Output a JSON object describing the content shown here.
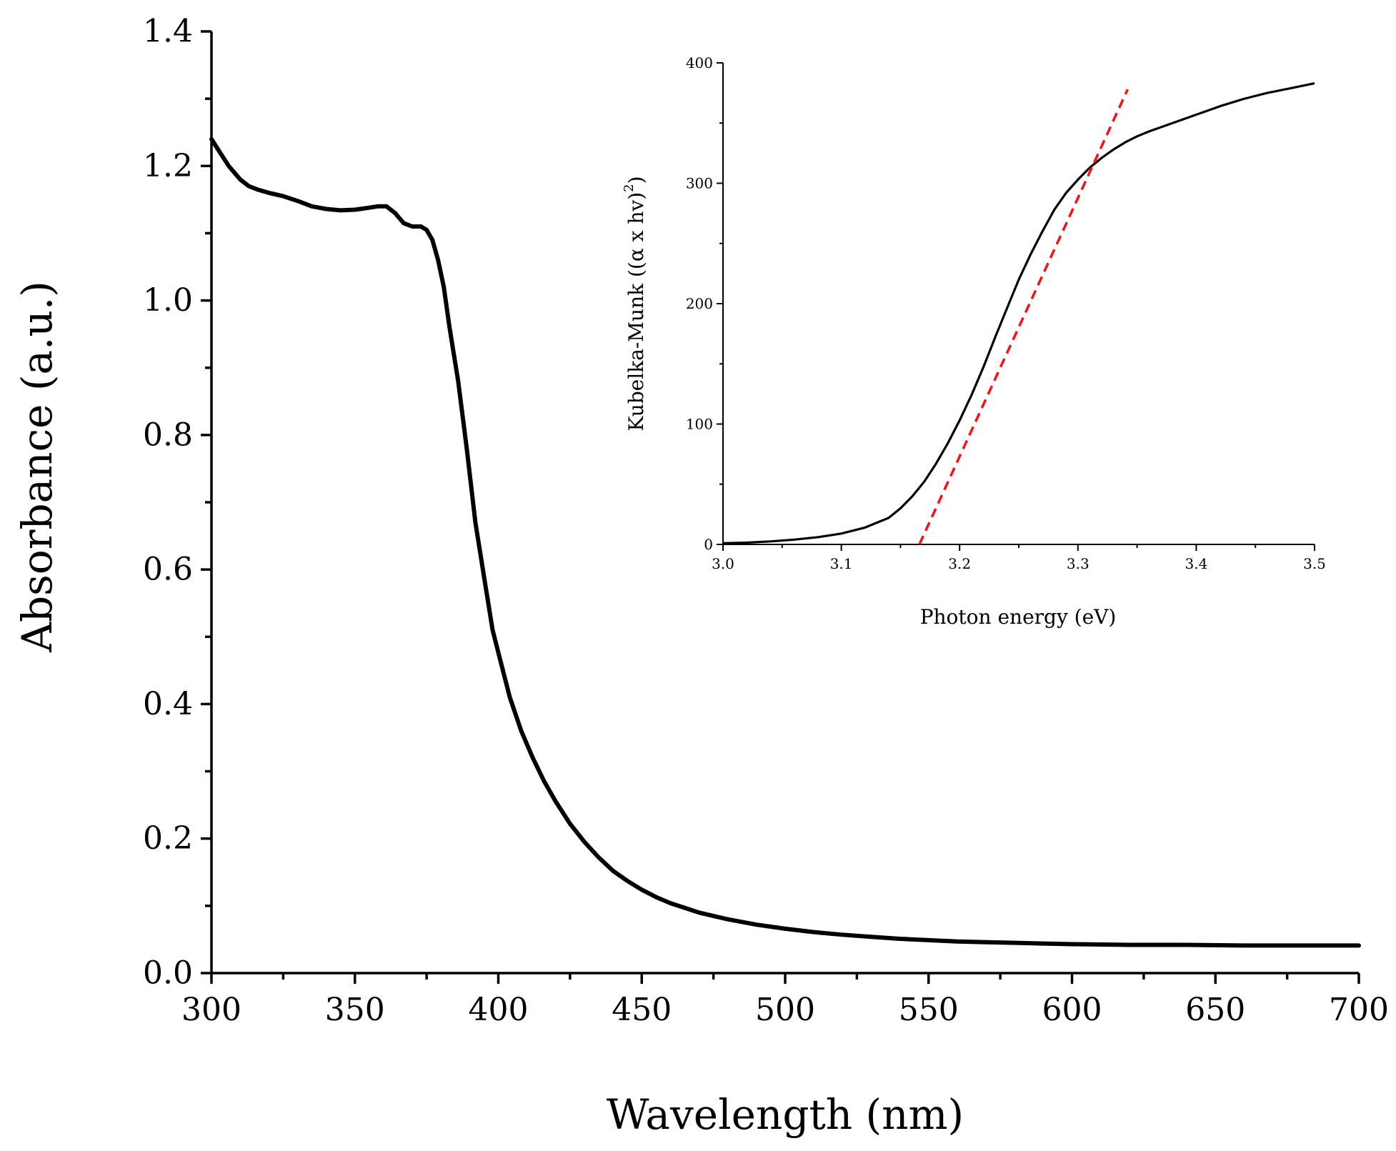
{
  "chart_data": [
    {
      "id": "main",
      "type": "line",
      "title": "",
      "xlabel": "Wavelength (nm)",
      "ylabel": "Absorbance (a.u.)",
      "xlim": [
        300,
        700
      ],
      "ylim": [
        0,
        1.4
      ],
      "x_ticks": [
        300,
        350,
        400,
        450,
        500,
        550,
        600,
        650,
        700
      ],
      "x_tick_labels": [
        "300",
        "350",
        "400",
        "450",
        "500",
        "550",
        "600",
        "650",
        "700"
      ],
      "y_ticks": [
        0,
        0.2,
        0.4,
        0.6,
        0.8,
        1.0,
        1.2,
        1.4
      ],
      "y_tick_labels": [
        "0.0",
        "0.2",
        "0.4",
        "0.6",
        "0.8",
        "1.0",
        "1.2",
        "1.4"
      ],
      "grid": false,
      "series": [
        {
          "name": "Absorbance",
          "color": "#000000",
          "x": [
            300,
            303,
            306,
            310,
            313,
            316,
            320,
            325,
            330,
            335,
            340,
            345,
            350,
            355,
            358,
            361,
            364,
            367,
            370,
            373,
            375,
            377,
            379,
            381,
            383,
            386,
            389,
            392,
            395,
            398,
            401,
            404,
            408,
            412,
            416,
            420,
            425,
            430,
            435,
            440,
            445,
            450,
            455,
            460,
            470,
            480,
            490,
            500,
            510,
            520,
            530,
            540,
            550,
            560,
            570,
            580,
            590,
            600,
            620,
            640,
            660,
            680,
            700
          ],
          "y": [
            1.24,
            1.22,
            1.2,
            1.18,
            1.17,
            1.165,
            1.16,
            1.155,
            1.148,
            1.14,
            1.136,
            1.134,
            1.135,
            1.138,
            1.14,
            1.14,
            1.13,
            1.115,
            1.11,
            1.11,
            1.105,
            1.09,
            1.06,
            1.02,
            0.96,
            0.88,
            0.78,
            0.67,
            0.59,
            0.51,
            0.46,
            0.41,
            0.36,
            0.32,
            0.285,
            0.255,
            0.222,
            0.195,
            0.172,
            0.152,
            0.137,
            0.124,
            0.113,
            0.104,
            0.09,
            0.08,
            0.072,
            0.066,
            0.061,
            0.057,
            0.054,
            0.051,
            0.049,
            0.047,
            0.046,
            0.045,
            0.044,
            0.043,
            0.042,
            0.042,
            0.041,
            0.041,
            0.041
          ]
        }
      ]
    },
    {
      "id": "inset",
      "type": "line",
      "title": "",
      "xlabel": "Photon energy (eV)",
      "ylabel": "Kubelka-Munk ((α x hv)",
      "ylabel_close": ")",
      "ylabel_superscript": "2",
      "xlim": [
        3.0,
        3.5
      ],
      "ylim": [
        0,
        400
      ],
      "x_ticks": [
        3.0,
        3.1,
        3.2,
        3.3,
        3.4,
        3.5
      ],
      "x_tick_labels": [
        "3.0",
        "3.1",
        "3.2",
        "3.3",
        "3.4",
        "3.5"
      ],
      "y_ticks": [
        0,
        100,
        200,
        300,
        400
      ],
      "y_tick_labels": [
        "0",
        "100",
        "200",
        "300",
        "400"
      ],
      "grid": false,
      "series": [
        {
          "name": "Kubelka-Munk",
          "color": "#000000",
          "dash": "solid",
          "x": [
            3.0,
            3.02,
            3.04,
            3.06,
            3.08,
            3.1,
            3.12,
            3.14,
            3.15,
            3.16,
            3.17,
            3.18,
            3.19,
            3.2,
            3.21,
            3.22,
            3.23,
            3.24,
            3.25,
            3.26,
            3.27,
            3.28,
            3.29,
            3.3,
            3.31,
            3.32,
            3.33,
            3.34,
            3.35,
            3.36,
            3.38,
            3.4,
            3.42,
            3.44,
            3.46,
            3.48,
            3.5
          ],
          "y": [
            1,
            1.5,
            2.5,
            4,
            6,
            9,
            14,
            22,
            30,
            40,
            52,
            67,
            84,
            103,
            124,
            147,
            172,
            196,
            220,
            241,
            260,
            278,
            292,
            303,
            313,
            321,
            328,
            334,
            339,
            343,
            350,
            357,
            364,
            370,
            375,
            379,
            383
          ]
        },
        {
          "name": "Linear fit",
          "color": "#e8191a",
          "dash": "dashed",
          "x": [
            3.166,
            3.342
          ],
          "y": [
            0,
            378
          ]
        }
      ]
    }
  ]
}
